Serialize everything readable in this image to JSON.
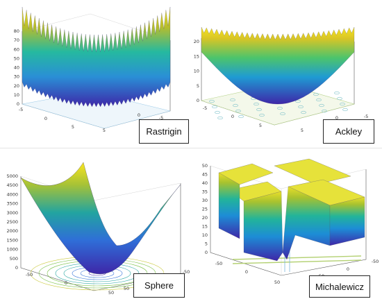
{
  "chart_data": [
    {
      "type": "surface",
      "title": "Rastrigin",
      "z_ticks": [
        "0",
        "10",
        "20",
        "30",
        "40",
        "50",
        "60",
        "70",
        "80"
      ],
      "x_ticks": [
        "-5",
        "0",
        "5"
      ],
      "y_ticks": [
        "-5",
        "0",
        "5"
      ],
      "xlim": [
        -5,
        5
      ],
      "ylim": [
        -5,
        5
      ],
      "zlim": [
        0,
        80
      ],
      "contour_projection": true,
      "colormap": "parula"
    },
    {
      "type": "surface",
      "title": "Ackley",
      "z_ticks": [
        "0",
        "5",
        "10",
        "15",
        "20"
      ],
      "x_ticks": [
        "-5",
        "0",
        "5"
      ],
      "y_ticks": [
        "-5",
        "0",
        "5"
      ],
      "xlim": [
        -5,
        5
      ],
      "ylim": [
        -5,
        5
      ],
      "zlim": [
        0,
        22
      ],
      "contour_projection": true,
      "colormap": "parula"
    },
    {
      "type": "surface",
      "title": "Sphere",
      "z_ticks": [
        "0",
        "500",
        "1000",
        "1500",
        "2000",
        "2500",
        "3000",
        "3500",
        "4000",
        "4500",
        "5000"
      ],
      "x_ticks": [
        "-50",
        "0",
        "50"
      ],
      "y_ticks": [
        "-50",
        "0",
        "50"
      ],
      "xlim": [
        -50,
        50
      ],
      "ylim": [
        -50,
        50
      ],
      "zlim": [
        0,
        5000
      ],
      "contour_projection": true,
      "colormap": "parula"
    },
    {
      "type": "surface",
      "title": "Michalewicz",
      "z_ticks": [
        "0",
        "5",
        "10",
        "15",
        "20",
        "25",
        "30",
        "35",
        "40",
        "45",
        "50"
      ],
      "x_ticks": [
        "-50",
        "0",
        "50"
      ],
      "y_ticks": [
        "-50",
        "0",
        "50"
      ],
      "xlim": [
        -50,
        50
      ],
      "ylim": [
        -50,
        50
      ],
      "zlim": [
        0,
        50
      ],
      "contour_projection": true,
      "colormap": "parula"
    }
  ]
}
